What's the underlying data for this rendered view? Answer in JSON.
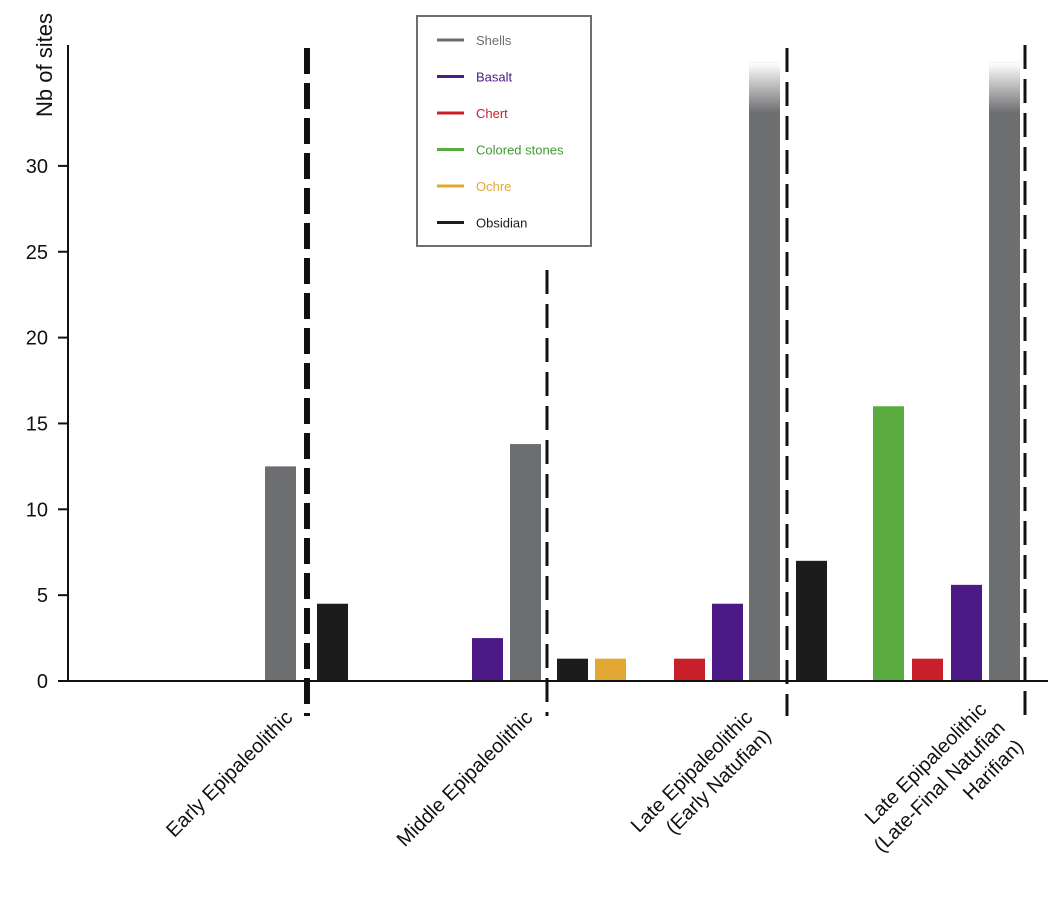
{
  "chart_data": {
    "type": "bar",
    "ylabel": "Nb of sites",
    "ylim": [
      0,
      36
    ],
    "yticks": [
      0,
      5,
      10,
      15,
      20,
      25,
      30
    ],
    "y_axis_break_above": 33.5,
    "categories": [
      [
        "Early Epipaleolithic"
      ],
      [
        "Middle Epipaleolithic"
      ],
      [
        "Late Epipaleolithic",
        "(Early Natufian)"
      ],
      [
        "Late Epipaleolithic",
        "(Late-Final Natufian",
        "Harifian)"
      ]
    ],
    "series": [
      {
        "name": "Shells",
        "color": "#6d6e70",
        "text_color": "#6d6e70"
      },
      {
        "name": "Basalt",
        "color": "#4b1a87",
        "text_color": "#4b1a87"
      },
      {
        "name": "Chert",
        "color": "#c8202b",
        "text_color": "#c8202b"
      },
      {
        "name": "Colored stones",
        "color": "#5aab3f",
        "text_color": "#3f9a32"
      },
      {
        "name": "Ochre",
        "color": "#e3a834",
        "text_color": "#e3a834"
      },
      {
        "name": "Obsidian",
        "color": "#1c1c1c",
        "text_color": "#1c1c1c"
      }
    ],
    "bars": [
      {
        "category": 0,
        "series": "Shells",
        "value": 12.5
      },
      {
        "category": 0,
        "series": "Obsidian",
        "value": 4.5
      },
      {
        "category": 1,
        "series": "Basalt",
        "value": 2.5
      },
      {
        "category": 1,
        "series": "Shells",
        "value": 13.8
      },
      {
        "category": 1,
        "series": "Obsidian",
        "value": 1.3
      },
      {
        "category": 1,
        "series": "Ochre",
        "value": 1.3
      },
      {
        "category": 2,
        "series": "Chert",
        "value": 1.3
      },
      {
        "category": 2,
        "series": "Basalt",
        "value": 4.5
      },
      {
        "category": 2,
        "series": "Shells",
        "value": 36
      },
      {
        "category": 2,
        "series": "Obsidian",
        "value": 7
      },
      {
        "category": 3,
        "series": "Colored stones",
        "value": 16
      },
      {
        "category": 3,
        "series": "Chert",
        "value": 1.3
      },
      {
        "category": 3,
        "series": "Basalt",
        "value": 5.6
      },
      {
        "category": 3,
        "series": "Shells",
        "value": 36
      }
    ],
    "legend_position": "top-center",
    "grid": false
  }
}
